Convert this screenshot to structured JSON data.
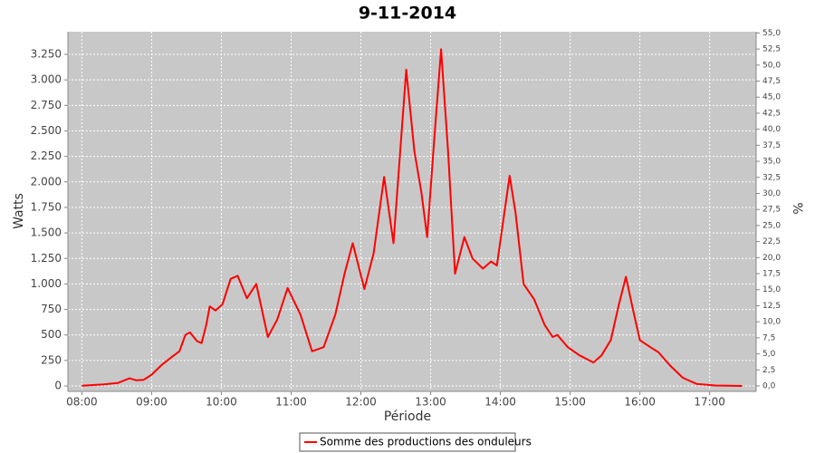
{
  "chart_data": {
    "type": "line",
    "title": "9-11-2014",
    "x_label": "Période",
    "y_label": "Watts",
    "y2_label": "%",
    "x": [
      "08:00",
      "08:08",
      "08:19",
      "08:31",
      "08:41",
      "08:47",
      "08:53",
      "09:00",
      "09:09",
      "09:18",
      "09:24",
      "09:29",
      "09:33",
      "09:39",
      "09:43",
      "09:47",
      "09:50",
      "09:55",
      "10:01",
      "10:08",
      "10:14",
      "10:22",
      "10:30",
      "10:40",
      "10:48",
      "10:57",
      "11:08",
      "11:18",
      "11:28",
      "11:38",
      "11:46",
      "11:53",
      "12:03",
      "12:11",
      "12:20",
      "12:28",
      "12:39",
      "12:46",
      "12:52",
      "12:57",
      "13:03",
      "13:09",
      "13:15",
      "13:21",
      "13:29",
      "13:36",
      "13:45",
      "13:52",
      "13:57",
      "14:08",
      "14:13",
      "14:20",
      "14:29",
      "14:38",
      "14:45",
      "14:49",
      "14:58",
      "15:08",
      "15:20",
      "15:27",
      "15:35",
      "15:42",
      "15:48",
      "15:55",
      "16:00",
      "16:09",
      "16:16",
      "16:26",
      "16:37",
      "16:49",
      "17:05",
      "17:28"
    ],
    "series": [
      {
        "name": "Somme des productions des onduleurs",
        "color": "#ff0000",
        "values": [
          3,
          8,
          15,
          30,
          75,
          55,
          60,
          110,
          210,
          290,
          340,
          500,
          525,
          440,
          420,
          600,
          780,
          740,
          800,
          1050,
          1080,
          860,
          1000,
          480,
          650,
          960,
          700,
          340,
          380,
          700,
          1100,
          1400,
          950,
          1300,
          2050,
          1400,
          3100,
          2300,
          1900,
          1460,
          2400,
          3300,
          2300,
          1100,
          1460,
          1250,
          1150,
          1220,
          1180,
          2060,
          1700,
          1000,
          850,
          600,
          480,
          500,
          380,
          300,
          230,
          300,
          450,
          800,
          1070,
          700,
          450,
          380,
          330,
          200,
          80,
          20,
          5,
          0
        ]
      }
    ],
    "xlim": [
      "07:48",
      "17:40"
    ],
    "xticks": [
      "08:00",
      "09:00",
      "10:00",
      "11:00",
      "12:00",
      "13:00",
      "14:00",
      "15:00",
      "16:00",
      "17:00"
    ],
    "ylim": [
      -53,
      3472
    ],
    "yticks": [
      0,
      250,
      500,
      750,
      {
        "value": 1000,
        "label": "1.000"
      },
      {
        "value": 1250,
        "label": "1.250"
      },
      {
        "value": 1500,
        "label": "1.500"
      },
      {
        "value": 1750,
        "label": "1.750"
      },
      {
        "value": 2000,
        "label": "2.000"
      },
      {
        "value": 2250,
        "label": "2.250"
      },
      {
        "value": 2500,
        "label": "2.500"
      },
      {
        "value": 2750,
        "label": "2.750"
      },
      {
        "value": 3000,
        "label": "3.000"
      },
      {
        "value": 3250,
        "label": "3.250"
      }
    ],
    "y2lim": [
      -0.85,
      55.2
    ],
    "y2ticks": [
      {
        "value": 0,
        "label": "0,0"
      },
      {
        "value": 2.5,
        "label": "2,5"
      },
      {
        "value": 5,
        "label": "5,0"
      },
      {
        "value": 7.5,
        "label": "7,5"
      },
      {
        "value": 10,
        "label": "10,0"
      },
      {
        "value": 12.5,
        "label": "12,5"
      },
      {
        "value": 15,
        "label": "15,0"
      },
      {
        "value": 17.5,
        "label": "17,5"
      },
      {
        "value": 20,
        "label": "20,0"
      },
      {
        "value": 22.5,
        "label": "22,5"
      },
      {
        "value": 25,
        "label": "25,0"
      },
      {
        "value": 27.5,
        "label": "27,5"
      },
      {
        "value": 30,
        "label": "30,0"
      },
      {
        "value": 32.5,
        "label": "32,5"
      },
      {
        "value": 35,
        "label": "35,0"
      },
      {
        "value": 37.5,
        "label": "37,5"
      },
      {
        "value": 40,
        "label": "40,0"
      },
      {
        "value": 42.5,
        "label": "42,5"
      },
      {
        "value": 45,
        "label": "45,0"
      },
      {
        "value": 47.5,
        "label": "47,5"
      },
      {
        "value": 50,
        "label": "50,0"
      },
      {
        "value": 52.5,
        "label": "52,5"
      },
      {
        "value": 55,
        "label": "55,0"
      }
    ],
    "grid": true,
    "legend": "bottom"
  }
}
